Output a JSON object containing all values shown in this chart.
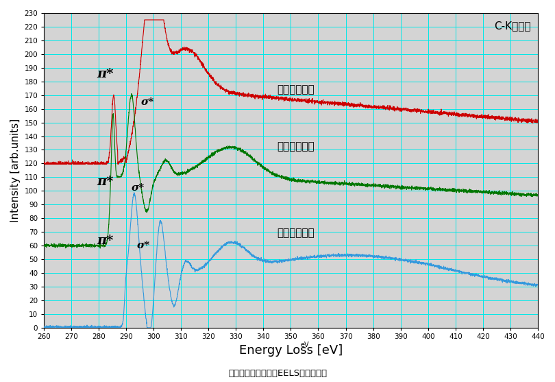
{
  "title": "C-Kエッジ",
  "xlabel": "Energy Loss [eV]",
  "ylabel": "Intensity [arb.units]",
  "subtitle": "各種カーボン材料のEELSスペクトル",
  "xmin": 260,
  "xmax": 440,
  "ymin": 0,
  "ymax": 230,
  "yticks": [
    0,
    10,
    20,
    30,
    40,
    50,
    60,
    70,
    80,
    90,
    100,
    110,
    120,
    130,
    140,
    150,
    160,
    170,
    180,
    190,
    200,
    210,
    220,
    230
  ],
  "xticks": [
    260,
    270,
    280,
    290,
    300,
    310,
    320,
    330,
    340,
    350,
    360,
    370,
    380,
    390,
    400,
    410,
    420,
    430,
    440
  ],
  "bg_color": "#d4d4d4",
  "grid_color": "#00e8e8",
  "amorphous_color": "#cc0000",
  "graphite_color": "#007700",
  "diamond_color": "#3399dd",
  "label_amorphous": "アモルファス",
  "label_graphite": "グラファイト",
  "label_diamond": "ダイヤモンド",
  "pi_star": "π*",
  "sigma_star": "σ*"
}
